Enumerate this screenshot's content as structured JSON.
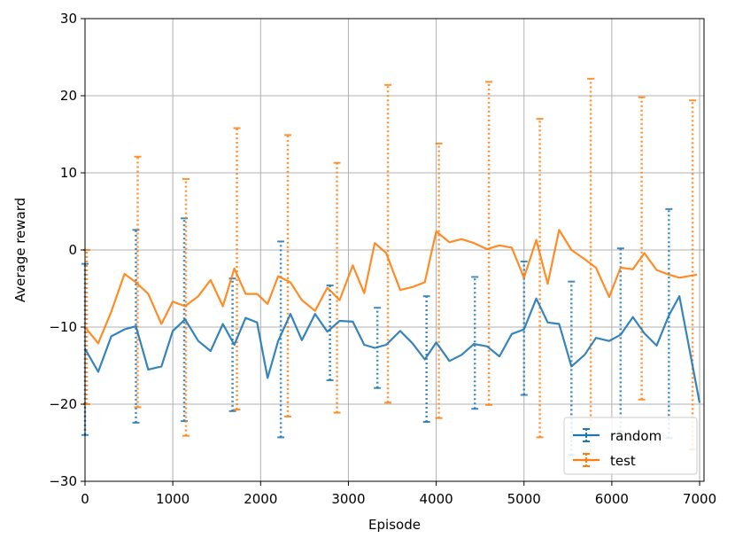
{
  "chart_data": {
    "type": "line",
    "title": "",
    "xlabel": "Episode",
    "ylabel": "Average reward",
    "xlim": [
      0,
      7050
    ],
    "ylim": [
      -30,
      30
    ],
    "x_ticks": [
      0,
      1000,
      2000,
      3000,
      4000,
      5000,
      6000,
      7000
    ],
    "y_ticks": [
      -30,
      -20,
      -10,
      0,
      10,
      20,
      30
    ],
    "x_tick_labels": [
      "0",
      "1000",
      "2000",
      "3000",
      "4000",
      "5000",
      "6000",
      "7000"
    ],
    "y_tick_labels": [
      "−30",
      "−20",
      "−10",
      "0",
      "10",
      "20",
      "30"
    ],
    "grid": true,
    "legend_position": "lower-right",
    "series": [
      {
        "name": "random",
        "color": "#1f77b4",
        "x": [
          0,
          150,
          300,
          450,
          580,
          720,
          870,
          1000,
          1140,
          1290,
          1430,
          1570,
          1700,
          1830,
          1960,
          2080,
          2200,
          2340,
          2470,
          2620,
          2760,
          2900,
          3050,
          3180,
          3300,
          3430,
          3590,
          3730,
          3870,
          4000,
          4150,
          4290,
          4430,
          4580,
          4720,
          4860,
          5000,
          5140,
          5270,
          5400,
          5540,
          5690,
          5820,
          5970,
          6100,
          6240,
          6370,
          6510,
          6650,
          6770,
          7000
        ],
        "y": [
          -12.8,
          -15.8,
          -11.2,
          -10.3,
          -9.9,
          -15.5,
          -15.1,
          -10.5,
          -9.0,
          -11.8,
          -13.1,
          -9.6,
          -12.3,
          -8.8,
          -9.4,
          -16.6,
          -11.8,
          -8.3,
          -11.7,
          -8.3,
          -10.6,
          -9.2,
          -9.3,
          -12.3,
          -12.7,
          -12.3,
          -10.5,
          -12.1,
          -14.2,
          -12.0,
          -14.4,
          -13.6,
          -12.2,
          -12.5,
          -13.8,
          -10.9,
          -10.3,
          -6.3,
          -9.4,
          -9.6,
          -15.1,
          -13.6,
          -11.4,
          -11.8,
          -11.0,
          -8.7,
          -10.8,
          -12.4,
          -8.5,
          -6.0,
          -19.8
        ]
      },
      {
        "name": "test",
        "color": "#ff7f0e",
        "x": [
          0,
          150,
          300,
          450,
          580,
          720,
          870,
          1000,
          1140,
          1290,
          1430,
          1570,
          1700,
          1830,
          1960,
          2080,
          2200,
          2340,
          2470,
          2620,
          2760,
          2900,
          3050,
          3180,
          3300,
          3430,
          3590,
          3730,
          3870,
          4000,
          4150,
          4290,
          4430,
          4580,
          4720,
          4860,
          5000,
          5140,
          5270,
          5400,
          5540,
          5690,
          5820,
          5970,
          6100,
          6240,
          6370,
          6510,
          6650,
          6770,
          6970
        ],
        "y": [
          -10.0,
          -12.1,
          -8.0,
          -3.1,
          -4.2,
          -5.7,
          -9.6,
          -6.7,
          -7.3,
          -6.0,
          -3.9,
          -7.3,
          -2.4,
          -5.7,
          -5.7,
          -7.0,
          -3.4,
          -4.2,
          -6.5,
          -7.9,
          -4.9,
          -6.5,
          -2.0,
          -5.6,
          0.9,
          -0.4,
          -5.2,
          -4.8,
          -4.2,
          2.4,
          1.0,
          1.4,
          0.9,
          0.1,
          0.6,
          0.3,
          -3.6,
          1.3,
          -4.4,
          2.6,
          0.0,
          -1.2,
          -2.3,
          -6.1,
          -2.3,
          -2.5,
          -0.4,
          -2.6,
          -3.2,
          -3.6,
          -3.2
        ]
      }
    ],
    "error_bars": [
      {
        "series": "random",
        "x": [
          0,
          580,
          1130,
          1680,
          2230,
          2790,
          3330,
          3890,
          4440,
          5000,
          5540,
          6100,
          6650
        ],
        "low": [
          -24.0,
          -22.4,
          -22.2,
          -20.9,
          -24.3,
          -16.9,
          -17.9,
          -22.3,
          -20.6,
          -18.8,
          -26.6,
          -23.6,
          -24.4
        ],
        "high": [
          -1.8,
          2.6,
          4.1,
          -3.7,
          1.1,
          -4.6,
          -7.5,
          -6.0,
          -3.5,
          -1.5,
          -4.1,
          0.2,
          5.3
        ]
      },
      {
        "series": "test",
        "x": [
          20,
          600,
          1150,
          1730,
          2310,
          2870,
          3450,
          4030,
          4600,
          5180,
          5760,
          6340,
          6920
        ],
        "low": [
          -20.0,
          -20.4,
          -24.1,
          -20.7,
          -21.6,
          -21.1,
          -19.8,
          -21.8,
          -20.1,
          -24.3,
          -27.3,
          -19.4,
          -25.9
        ],
        "high": [
          0.0,
          12.1,
          9.2,
          15.8,
          14.9,
          11.3,
          21.4,
          13.8,
          21.8,
          17.0,
          22.2,
          19.8,
          19.4
        ]
      }
    ]
  }
}
